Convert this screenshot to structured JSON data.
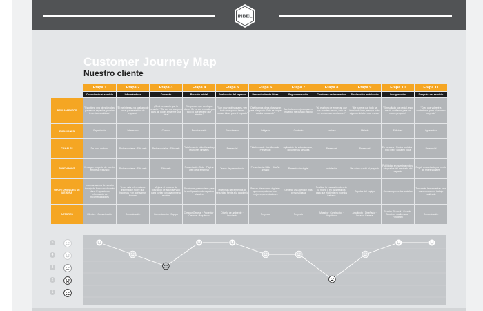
{
  "header": {
    "logo_text": "INBEL"
  },
  "title": "Customer Journey Map",
  "subtitle": "Nuestro cliente",
  "colors": {
    "accent": "#f5a623",
    "cell": "#b3b6b9",
    "header_bar": "#515355",
    "dark_row": "#1d1d1d"
  },
  "stages": [
    {
      "label": "Etapa 1",
      "touchpoint": "Conociendo el servicio"
    },
    {
      "label": "Etapa 2",
      "touchpoint": "Informándose"
    },
    {
      "label": "Etapa 3",
      "touchpoint": "Contacto"
    },
    {
      "label": "Etapa 4",
      "touchpoint": "Reunión Inicial"
    },
    {
      "label": "Etapa 5",
      "touchpoint": "Evaluación del espacio"
    },
    {
      "label": "Etapa 6",
      "touchpoint": "Presentación de Ideas"
    },
    {
      "label": "Etapa 7",
      "touchpoint": "Segunda reunión"
    },
    {
      "label": "Etapa 8",
      "touchpoint": "Comienzo de instalación"
    },
    {
      "label": "Etapa 9",
      "touchpoint": "Finalización instalación"
    },
    {
      "label": "Etapa 10",
      "touchpoint": "Inauguración"
    },
    {
      "label": "Etapa 11",
      "touchpoint": "Después del servicio"
    }
  ],
  "rows": [
    {
      "label": "PENSAMIENTOS",
      "cells": [
        "\"Esto tiene una atención clara para esos espacios, podrían tener buenas ideas.\"",
        "\"Él me interesa ya acabarlo de crear para este tipo de espacio\"",
        "¿Será necesario que lo consulte? \"Tal vez me compren para así poder armarme una idea\"",
        "\"Me parece que es el que ofrece. Se ve con empatía por todo lo que le tiene que atender.\"",
        "\"Son muy profesionales, ven todo en espacio, tienen buenas ideas para el espacio\"",
        "\"Qué buenas ideas plasmaron para el espacio. Esto es lo que estaba buscando\"",
        "\"Me hicieron mejoras para el proyecto, me gustan mucho\"",
        "\"Ya era hora de empezar, que nos cuenten mucho, todo se ve en buenas condiciones\"",
        "\"Me parece que todo ha terminado bien, aunque hubo algunos detalles que revisar\"",
        "\"El resultado fue genial, esto me da confianza para un nuevo proyecto\"",
        "\"Creo que volveré a contratarlos para el próximo proyecto\""
      ]
    },
    {
      "label": "EMOCIONES",
      "cells": [
        "Expectación",
        "Interesado",
        "Curioso",
        "Entusiasmado",
        "Emocionado",
        "Intrigado",
        "Contento",
        "Ansioso",
        "Aliviado",
        "Felicidad",
        "Agradecido"
      ]
    },
    {
      "label": "CANALES",
      "cells": [
        "De boca en boca",
        "Redes sociales · Sitio web",
        "Redes sociales · Sitio web",
        "Plataforma de videollamada y reuniones virtuales",
        "Presencial",
        "Plataforma de videollamada · Presencial",
        "Aplicación de videollamada y documentos virtuales",
        "Presencial",
        "Presencial",
        "En persona · Redes sociales · Sitio web · Boca en boca",
        "Presencial"
      ]
    },
    {
      "label": "TOUCHPOINT",
      "cells": [
        "Ver algún proyecto de nuestra empresa realizado",
        "Redes sociales · Sitio web",
        "Sitio web",
        "Presentación Slide · Página web de la empresa",
        "Textos de presentación",
        "Presentación Slide · Diseño armado",
        "Presentación digital",
        "Instalación",
        "Ver cómo quedó el proyecto",
        "Publicidad en nuestras redes, fotografías del resultado del espacio",
        "Seguir en contacto por medio de redes sociales"
      ]
    },
    {
      "label": "OPORTUNIDADES DE MEJORA",
      "cells": [
        "Informar acerca de nuestro trabajo de forma mucho más clara. Proporcionar información de recomendaciones",
        "Tener más referencias e información sobre qué hacemos y en qué somos buenos",
        "Mejorar el proceso de cotización de algún servicio para contar con una primera reunión",
        "Reuniones presenciales para la configuración de espacios visuales",
        "Tener más herramientas de seguridad frente a la pandemia",
        "Buscar plataformas digitales que nos ayuden a tener mejores presentaciones",
        "Generar una atención más personalizada",
        "Realizar la instalación durante la noche o en días festivos para que el cliente no note los trabajos",
        "Rapidez del equipo",
        "Contacto por redes sociales",
        "Tener más herramientas para dar a conocer el trabajo realizado"
      ]
    },
    {
      "label": "ACTORES",
      "cells": [
        "Clientes · Comunicación",
        "Comunicación",
        "Comunicación · Equipo",
        "Creador General · Proyecto · Creador · Arquitecto",
        "Diseño de ambiente · Arquitecto",
        "Proyecto",
        "Proyecto",
        "Maestro · Constructor · Arquitecto",
        "Arquitecto · Diseñador · Creador General",
        "Director General · Creador Creativo · Audiovisual · Fotógrafo",
        "Comunicación"
      ]
    }
  ],
  "emotion_scale": [
    {
      "level": 5,
      "label": "5"
    },
    {
      "level": 4,
      "label": "4"
    },
    {
      "level": 3,
      "label": "3"
    },
    {
      "level": 2,
      "label": "2"
    },
    {
      "level": 1,
      "label": "1"
    }
  ],
  "emotion_curve": [
    5,
    4,
    2,
    5,
    5,
    4,
    4,
    1,
    4,
    5,
    5
  ]
}
